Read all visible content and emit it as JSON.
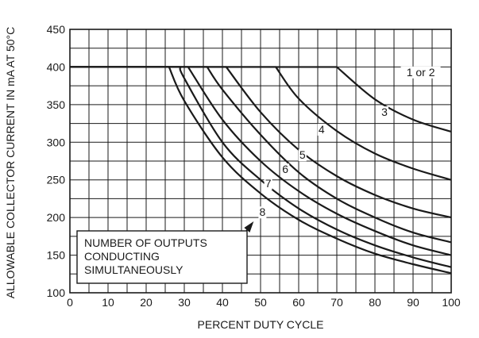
{
  "chart_data": {
    "type": "line",
    "xlabel": "PERCENT DUTY CYCLE",
    "ylabel": "ALLOWABLE COLLECTOR CURRENT IN mA AT 50°C",
    "xlim": [
      0,
      100
    ],
    "ylim": [
      100,
      450
    ],
    "x_ticks": [
      "0",
      "10",
      "20",
      "30",
      "40",
      "50",
      "60",
      "70",
      "80",
      "90",
      "100"
    ],
    "y_ticks": [
      "100",
      "150",
      "200",
      "250",
      "300",
      "350",
      "400",
      "450"
    ],
    "grid": true,
    "series": [
      {
        "name": "1 or 2",
        "x": [
          0,
          70,
          80,
          90,
          100
        ],
        "y": [
          400,
          400,
          357,
          330,
          314
        ]
      },
      {
        "name": "3",
        "x": [
          0,
          54,
          60,
          70,
          80,
          90,
          100
        ],
        "y": [
          400,
          400,
          358,
          315,
          285,
          265,
          250
        ]
      },
      {
        "name": "4",
        "x": [
          0,
          41,
          50,
          60,
          70,
          80,
          90,
          100
        ],
        "y": [
          400,
          400,
          340,
          290,
          255,
          230,
          212,
          200
        ]
      },
      {
        "name": "5",
        "x": [
          0,
          36,
          40,
          50,
          60,
          70,
          80,
          90,
          100
        ],
        "y": [
          400,
          400,
          370,
          310,
          260,
          225,
          200,
          180,
          167
        ]
      },
      {
        "name": "6",
        "x": [
          0,
          31,
          40,
          50,
          60,
          70,
          80,
          90,
          100
        ],
        "y": [
          400,
          400,
          330,
          275,
          235,
          205,
          182,
          163,
          150
        ]
      },
      {
        "name": "7",
        "x": [
          0,
          29,
          30,
          40,
          50,
          60,
          70,
          80,
          90,
          100
        ],
        "y": [
          400,
          400,
          385,
          300,
          250,
          212,
          184,
          163,
          147,
          134
        ]
      },
      {
        "name": "8",
        "x": [
          0,
          26,
          30,
          40,
          50,
          60,
          70,
          80,
          90,
          100
        ],
        "y": [
          400,
          400,
          355,
          280,
          232,
          197,
          172,
          152,
          138,
          126
        ]
      }
    ],
    "curve_labels": [
      {
        "text": "1 or 2",
        "x": 92,
        "y": 388
      },
      {
        "text": "3",
        "x": 82.5,
        "y": 335
      },
      {
        "text": "4",
        "x": 66,
        "y": 312
      },
      {
        "text": "5",
        "x": 61,
        "y": 278
      },
      {
        "text": "6",
        "x": 56.5,
        "y": 259
      },
      {
        "text": "7",
        "x": 52,
        "y": 240
      },
      {
        "text": "8",
        "x": 50.5,
        "y": 202
      }
    ],
    "annotation": {
      "lines": [
        "NUMBER OF OUTPUTS",
        "CONDUCTING",
        "SIMULTANEOUSLY"
      ]
    }
  }
}
